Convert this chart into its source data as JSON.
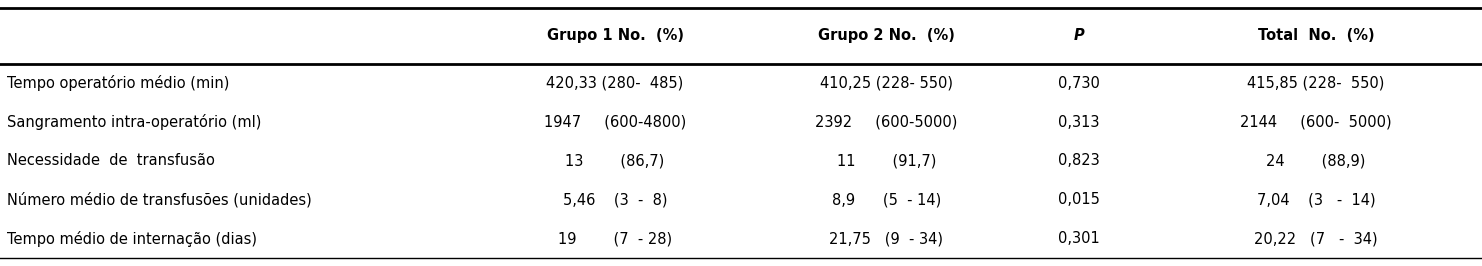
{
  "headers": [
    "",
    "Grupo 1 No.  (%)",
    "Grupo 2 No.  (%)",
    "P",
    "Total  No.  (%)"
  ],
  "col0": [
    "Tempo operatório médio (min)",
    "Sangramento intra-operatório (ml)",
    "Necessidade  de  transfusão",
    "Número médio de transfusões (unidades)",
    "Tempo médio de internação (dias)"
  ],
  "col1": [
    "420,33 (280-  485)",
    "1947     (600-4800)",
    "13        (86,7)",
    "5,46    (3  -  8)",
    "19        (7  - 28)"
  ],
  "col2": [
    "410,25 (228- 550)",
    "2392     (600-5000)",
    "11        (91,7)",
    "8,9      (5  - 14)",
    "21,75   (9  - 34)"
  ],
  "col3": [
    "0,730",
    "0,313",
    "0,823",
    "0,015",
    "0,301"
  ],
  "col4": [
    "415,85 (228-  550)",
    "2144     (600-  5000)",
    "24        (88,9)",
    "7,04    (3   -  14)",
    "20,22   (7   -  34)"
  ],
  "figsize": [
    14.82,
    2.66
  ],
  "dpi": 100,
  "fontsize": 10.5,
  "bg_color": "#ffffff",
  "text_color": "#000000"
}
